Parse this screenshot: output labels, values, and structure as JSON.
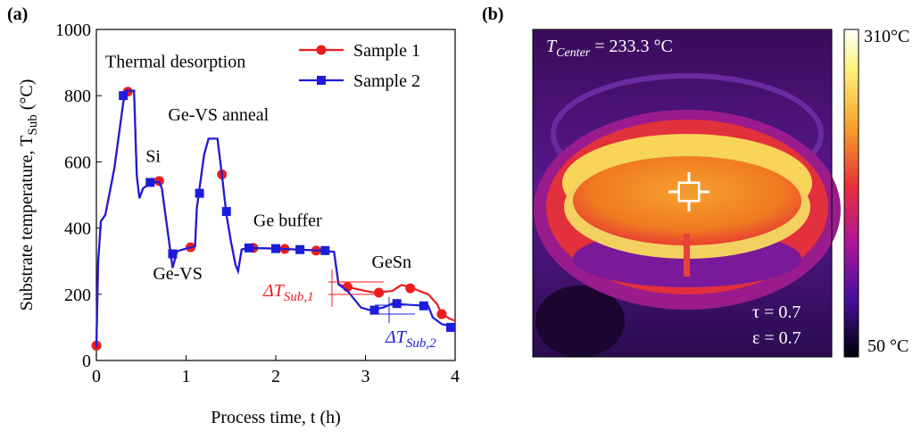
{
  "chart_data": {
    "type": "line",
    "panel_label": "(a)",
    "x_label": "Process time, t (h)",
    "y_label": [
      "Substrate temperature, T",
      "Sub",
      " (°C)"
    ],
    "xlim": [
      0,
      4
    ],
    "xticks": [
      0,
      1,
      2,
      3,
      4
    ],
    "ylim": [
      0,
      1000
    ],
    "yticks": [
      0,
      200,
      400,
      600,
      800,
      1000
    ],
    "legend": "top-right",
    "series": [
      {
        "name": "Sample 1",
        "color": "#ee1c1c",
        "marker": "circle",
        "x": [
          0,
          0.02,
          0.05,
          0.1,
          0.2,
          0.3,
          0.33,
          0.42,
          0.45,
          0.48,
          0.52,
          0.6,
          0.7,
          0.73,
          0.8,
          0.85,
          0.9,
          1.0,
          1.1,
          1.12,
          1.2,
          1.25,
          1.35,
          1.4,
          1.45,
          1.5,
          1.55,
          1.58,
          1.62,
          1.7,
          2.0,
          2.5,
          2.65,
          2.7,
          2.8,
          3.0,
          3.1,
          3.3,
          3.4,
          3.5,
          3.6,
          3.7,
          3.8,
          3.85,
          3.95,
          4
        ],
        "values": [
          40,
          300,
          420,
          440,
          580,
          780,
          815,
          815,
          560,
          490,
          520,
          535,
          540,
          520,
          380,
          280,
          330,
          338,
          345,
          460,
          620,
          670,
          670,
          560,
          440,
          360,
          290,
          270,
          335,
          340,
          338,
          332,
          328,
          230,
          222,
          210,
          205,
          210,
          228,
          222,
          210,
          200,
          170,
          140,
          125,
          120
        ],
        "marker_x": [
          0,
          0.35,
          0.7,
          1.05,
          1.4,
          1.75,
          2.1,
          2.45,
          2.8,
          3.15,
          3.5,
          3.85
        ],
        "marker_values": [
          45,
          812,
          542,
          342,
          562,
          340,
          337,
          332,
          222,
          205,
          218,
          140
        ]
      },
      {
        "name": "Sample 2",
        "color": "#1c1cdc",
        "marker": "square",
        "x": [
          0,
          0.02,
          0.05,
          0.1,
          0.2,
          0.3,
          0.33,
          0.42,
          0.45,
          0.48,
          0.52,
          0.6,
          0.7,
          0.73,
          0.8,
          0.85,
          0.9,
          1.0,
          1.1,
          1.12,
          1.2,
          1.25,
          1.35,
          1.4,
          1.45,
          1.5,
          1.55,
          1.58,
          1.62,
          1.7,
          2.0,
          2.5,
          2.65,
          2.7,
          2.8,
          2.95,
          3.05,
          3.2,
          3.3,
          3.5,
          3.7,
          3.75,
          3.85,
          4
        ],
        "values": [
          40,
          300,
          420,
          440,
          580,
          780,
          815,
          815,
          560,
          490,
          520,
          535,
          540,
          520,
          380,
          280,
          330,
          338,
          345,
          460,
          620,
          670,
          670,
          560,
          440,
          360,
          290,
          270,
          335,
          340,
          338,
          332,
          328,
          230,
          210,
          160,
          152,
          160,
          172,
          168,
          165,
          130,
          110,
          102
        ],
        "marker_x": [
          0.3,
          0.6,
          0.85,
          1.15,
          1.45,
          1.7,
          2.0,
          2.27,
          2.55,
          3.1,
          3.35,
          3.65,
          3.95
        ],
        "marker_values": [
          800,
          538,
          322,
          505,
          450,
          340,
          338,
          335,
          332,
          152,
          172,
          165,
          100
        ]
      }
    ],
    "annotations": [
      {
        "text": "Thermal desorption",
        "x": 0.1,
        "y": 885
      },
      {
        "text": "Si",
        "x": 0.55,
        "y": 600
      },
      {
        "text": "Ge-VS anneal",
        "x": 0.8,
        "y": 725
      },
      {
        "text": "Ge-VS",
        "x": 0.63,
        "y": 245
      },
      {
        "text": "Ge buffer",
        "x": 1.75,
        "y": 405
      },
      {
        "text": "GeSn",
        "x": 3.07,
        "y": 280
      }
    ],
    "delta_labels": [
      {
        "text": "ΔT",
        "sub": "Sub,1",
        "color": "#ee1c1c"
      },
      {
        "text": "ΔT",
        "sub": "Sub,2",
        "color": "#1c1cdc"
      }
    ]
  },
  "thermal_image": {
    "panel_label": "(b)",
    "center": [
      "T",
      "Center",
      " = 233.3 °C"
    ],
    "tau": "τ = 0.7",
    "epsilon": "ε = 0.7",
    "colorbar": {
      "max_label": "310°C",
      "min_label": "50 °C"
    }
  }
}
